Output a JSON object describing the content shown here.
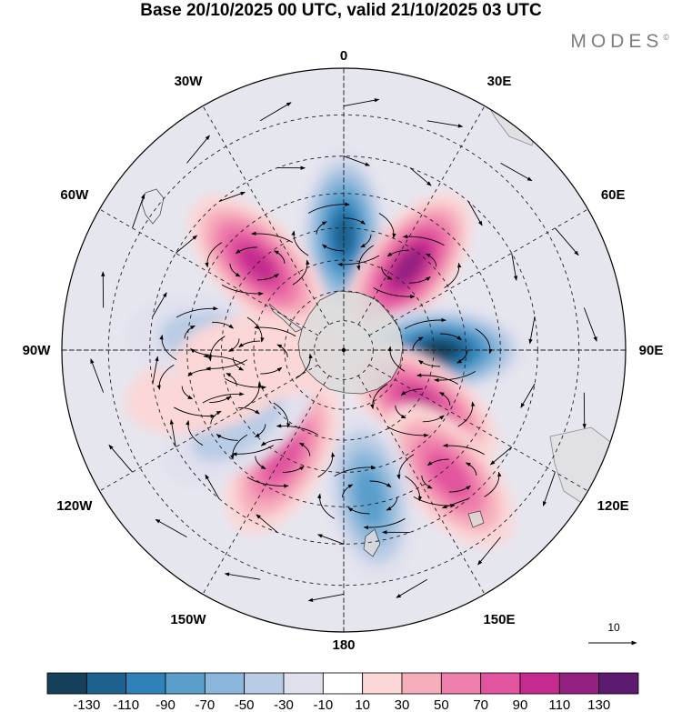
{
  "title": "Base 20/10/2025 00 UTC, valid 21/10/2025 03 UTC",
  "brand": "MODES",
  "brand_mark": "©",
  "projection": "south-polar-stereographic",
  "longitude_labels": [
    {
      "lon": 0,
      "text": "0"
    },
    {
      "lon": 30,
      "text": "30E"
    },
    {
      "lon": 60,
      "text": "60E"
    },
    {
      "lon": 90,
      "text": "90E"
    },
    {
      "lon": 120,
      "text": "120E"
    },
    {
      "lon": 150,
      "text": "150E"
    },
    {
      "lon": 180,
      "text": "180"
    },
    {
      "lon": -150,
      "text": "150W"
    },
    {
      "lon": -120,
      "text": "120W"
    },
    {
      "lon": -90,
      "text": "90W"
    },
    {
      "lon": -60,
      "text": "60W"
    },
    {
      "lon": -30,
      "text": "30W"
    }
  ],
  "reference_vector": {
    "value": "10"
  },
  "colorbar": {
    "colors": [
      "#163f5c",
      "#1d618f",
      "#2f82b9",
      "#5a9fcc",
      "#8ab7db",
      "#b9cce5",
      "#e1e1ee",
      "#ffffff",
      "#fbd7d7",
      "#f6aebc",
      "#ef7fac",
      "#e2549f",
      "#c52b8e",
      "#922181",
      "#5c1a70"
    ],
    "labels": [
      "-130",
      "-110",
      "-90",
      "-70",
      "-50",
      "-30",
      "-10",
      "10",
      "30",
      "50",
      "70",
      "90",
      "110",
      "130"
    ]
  },
  "anomaly_centers": [
    {
      "sign": "negative",
      "value": -120,
      "lon": 0,
      "lat": -52
    },
    {
      "sign": "positive",
      "value": 120,
      "lon": 38,
      "lat": -55
    },
    {
      "sign": "negative",
      "value": -140,
      "lon": 90,
      "lat": -58
    },
    {
      "sign": "positive",
      "value": 115,
      "lon": 125,
      "lat": -58
    },
    {
      "sign": "positive",
      "value": 80,
      "lon": 140,
      "lat": -38
    },
    {
      "sign": "negative",
      "value": -80,
      "lon": 170,
      "lat": -42
    },
    {
      "sign": "positive",
      "value": 80,
      "lon": -150,
      "lat": -50
    },
    {
      "sign": "negative",
      "value": -50,
      "lon": -125,
      "lat": -48
    },
    {
      "sign": "positive",
      "value": 30,
      "lon": -105,
      "lat": -45
    },
    {
      "sign": "negative",
      "value": -50,
      "lon": -85,
      "lat": -47
    },
    {
      "sign": "positive",
      "value": 110,
      "lon": -45,
      "lat": -50
    },
    {
      "sign": "positive",
      "value": 30,
      "lon": -95,
      "lat": -62
    }
  ]
}
